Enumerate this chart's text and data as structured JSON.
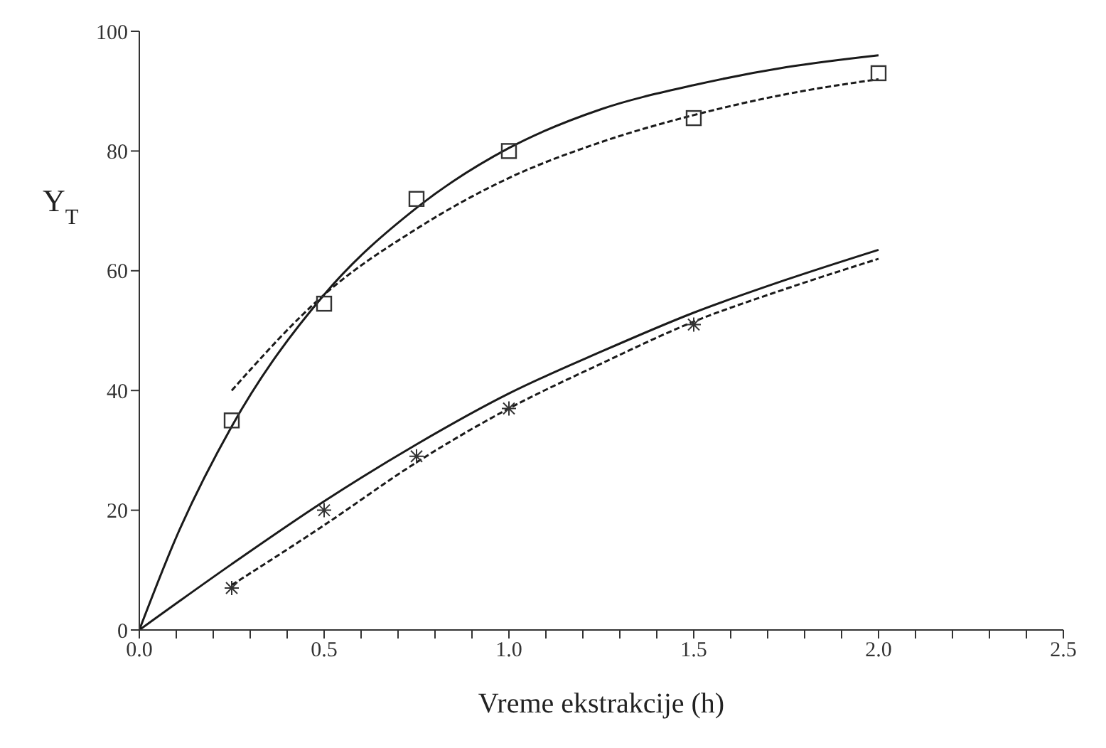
{
  "chart_data": {
    "type": "line",
    "xlabel": "Vreme ekstrakcije (h)",
    "ylabel": "Y$_{T}$",
    "xlim": [
      0,
      2.5
    ],
    "ylim": [
      0,
      100
    ],
    "xticks": [
      {
        "value": 0,
        "label": "0.0"
      },
      {
        "value": 0.1,
        "label": null
      },
      {
        "value": 0.2,
        "label": null
      },
      {
        "value": 0.3,
        "label": null
      },
      {
        "value": 0.4,
        "label": null
      },
      {
        "value": 0.5,
        "label": "0.5"
      },
      {
        "value": 0.6,
        "label": null
      },
      {
        "value": 0.7,
        "label": null
      },
      {
        "value": 0.8,
        "label": null
      },
      {
        "value": 0.9,
        "label": null
      },
      {
        "value": 1,
        "label": "1.0"
      },
      {
        "value": 1.1,
        "label": null
      },
      {
        "value": 1.2,
        "label": null
      },
      {
        "value": 1.3,
        "label": null
      },
      {
        "value": 1.4,
        "label": null
      },
      {
        "value": 1.5,
        "label": "1.5"
      },
      {
        "value": 1.6,
        "label": null
      },
      {
        "value": 1.7,
        "label": null
      },
      {
        "value": 1.8,
        "label": null
      },
      {
        "value": 1.9,
        "label": null
      },
      {
        "value": 2,
        "label": "2.0"
      },
      {
        "value": 2.1,
        "label": null
      },
      {
        "value": 2.2,
        "label": null
      },
      {
        "value": 2.3,
        "label": null
      },
      {
        "value": 2.4,
        "label": null
      },
      {
        "value": 2.5,
        "label": "2.5"
      }
    ],
    "yticks": [
      0,
      20,
      40,
      60,
      80,
      100
    ],
    "grid": false,
    "legend": false,
    "series": [
      {
        "line_style": "solid",
        "marker": "none",
        "color": "#1a1a1a",
        "x": [
          0,
          0.1,
          0.25,
          0.5,
          0.75,
          1,
          1.25,
          1.5,
          1.75,
          2
        ],
        "values": [
          0,
          15.5,
          34,
          56,
          70.5,
          80.5,
          87,
          91,
          94,
          96
        ]
      },
      {
        "line_style": "dashed",
        "marker": "none",
        "color": "#1a1a1a",
        "x": [
          0.25,
          0.5,
          0.75,
          1,
          1.25,
          1.5,
          1.75,
          2
        ],
        "values": [
          40,
          56,
          67,
          75.5,
          81.5,
          86,
          89.5,
          92
        ]
      },
      {
        "line_style": "solid",
        "marker": "none",
        "color": "#1a1a1a",
        "x": [
          0,
          0.25,
          0.5,
          0.75,
          1,
          1.25,
          1.5,
          1.75,
          2
        ],
        "values": [
          0,
          11,
          21.5,
          31,
          39.5,
          46.5,
          53,
          58.5,
          63.5
        ]
      },
      {
        "line_style": "dashed",
        "marker": "none",
        "color": "#1a1a1a",
        "x": [
          0.25,
          0.5,
          0.75,
          1,
          1.25,
          1.5,
          1.75,
          2
        ],
        "values": [
          7.5,
          17.5,
          28,
          37,
          44.5,
          51.5,
          57,
          62
        ]
      },
      {
        "type": "scatter",
        "marker": "square",
        "color": "#333333",
        "x": [
          0.25,
          0.5,
          0.75,
          1,
          1.5,
          2
        ],
        "values": [
          35,
          54.5,
          72,
          80,
          85.5,
          93
        ]
      },
      {
        "type": "scatter",
        "marker": "cross",
        "color": "#333333",
        "x": [
          0.25,
          0.5,
          0.75,
          1,
          1.5
        ],
        "values": [
          7,
          20,
          29,
          37,
          51
        ]
      }
    ]
  }
}
